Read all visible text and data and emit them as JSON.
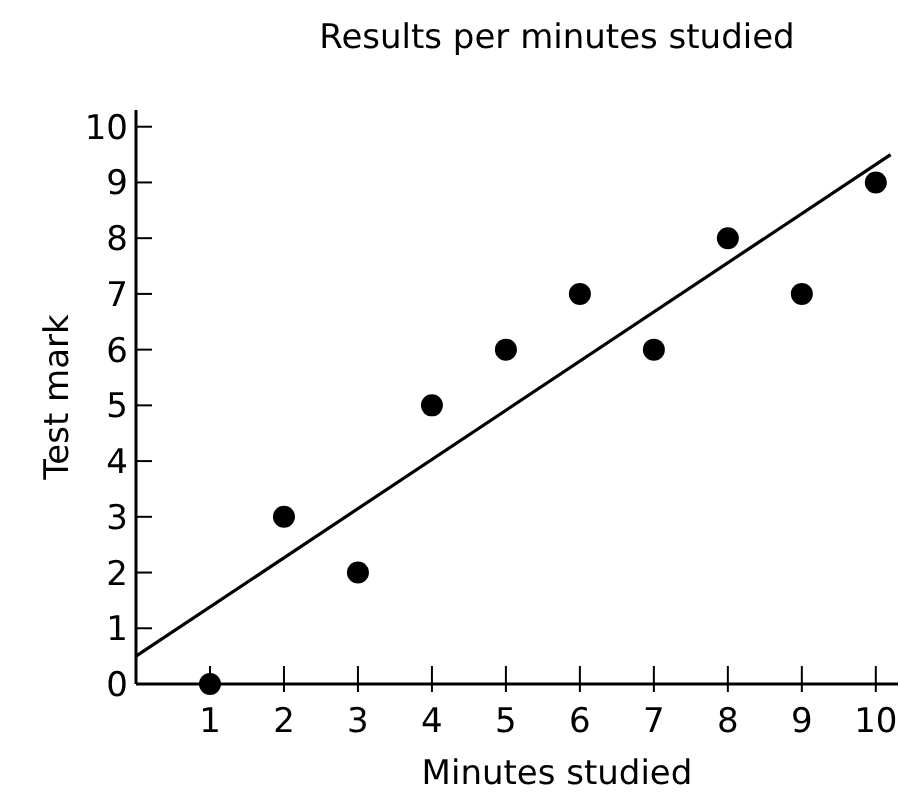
{
  "chart_data": {
    "type": "scatter",
    "title": "Results per minutes studied",
    "xlabel": "Minutes studied",
    "ylabel": "Test mark",
    "xlim": [
      0,
      10.3
    ],
    "ylim": [
      0,
      10.3
    ],
    "xticks": [
      1,
      2,
      3,
      4,
      5,
      6,
      7,
      8,
      9,
      10
    ],
    "yticks": [
      0,
      1,
      2,
      3,
      4,
      5,
      6,
      7,
      8,
      9,
      10
    ],
    "grid": false,
    "marker": "circle",
    "series": [
      {
        "color": "#000000",
        "x": [
          1,
          2,
          3,
          4,
          5,
          6,
          7,
          8,
          9,
          10
        ],
        "values": [
          0,
          3,
          2,
          5,
          6,
          7,
          6,
          8,
          7,
          9
        ]
      },
      {
        "type": "line",
        "color": "#000000",
        "x": [
          0,
          10.2
        ],
        "values": [
          0.5,
          9.5
        ],
        "marker": "none",
        "line_style": "solid"
      }
    ]
  }
}
